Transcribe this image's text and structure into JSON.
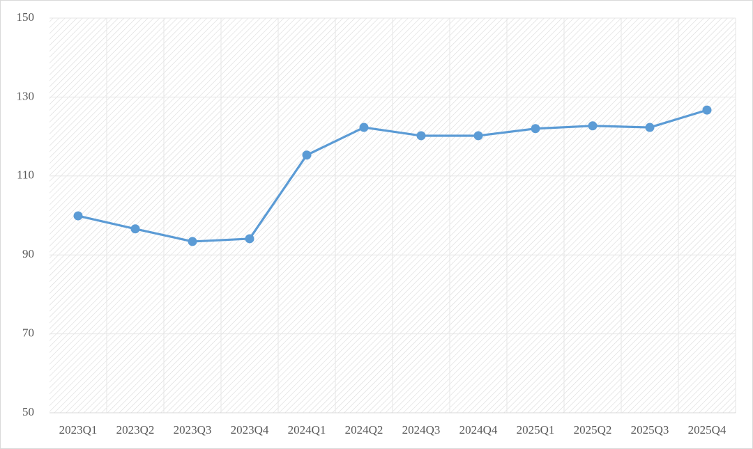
{
  "chart_data": {
    "type": "line",
    "categories": [
      "2023Q1",
      "2023Q2",
      "2023Q3",
      "2023Q4",
      "2024Q1",
      "2024Q2",
      "2024Q3",
      "2024Q4",
      "2025Q1",
      "2025Q2",
      "2025Q3",
      "2025Q4"
    ],
    "series": [
      {
        "color": "#5b9bd5",
        "values": [
          99.9,
          96.6,
          93.4,
          94.1,
          115.3,
          122.3,
          120.2,
          120.2,
          122.0,
          122.7,
          122.3,
          126.7
        ]
      }
    ],
    "ylim": [
      50,
      150
    ],
    "yticks": [
      50,
      70,
      90,
      110,
      130,
      150
    ],
    "grid": true
  }
}
